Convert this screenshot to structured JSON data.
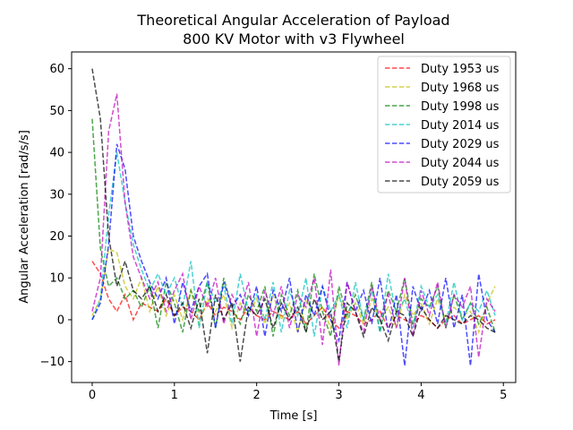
{
  "chart_data": {
    "type": "line",
    "title": "Theoretical Angular Acceleration of Payload",
    "subtitle": "800 KV Motor with v3 Flywheel",
    "xlabel": "Time [s]",
    "ylabel": "Angular Acceleration [rad/s/s]",
    "xlim": [
      -0.25,
      5.15
    ],
    "ylim": [
      -15,
      64
    ],
    "xticks": [
      0,
      1,
      2,
      3,
      4,
      5
    ],
    "yticks": [
      -10,
      0,
      10,
      20,
      30,
      40,
      50,
      60
    ],
    "grid": false,
    "legend_position": "top-right",
    "line_style": "dashed",
    "series": [
      {
        "name": "Duty 1953 us",
        "color": "#ff0000",
        "x": [
          0,
          0.1,
          0.2,
          0.3,
          0.4,
          0.5,
          0.6,
          0.7,
          0.8,
          0.9,
          1.0,
          1.1,
          1.2,
          1.3,
          1.4,
          1.5,
          1.6,
          1.7,
          1.8,
          1.9,
          2.0,
          2.1,
          2.2,
          2.3,
          2.4,
          2.5,
          2.6,
          2.7,
          2.8,
          2.9,
          3.0,
          3.1,
          3.2,
          3.3,
          3.4,
          3.5,
          3.6,
          3.7,
          3.8,
          3.9,
          4.0,
          4.1,
          4.2,
          4.3,
          4.4,
          4.5,
          4.6,
          4.7,
          4.8,
          4.9
        ],
        "y": [
          14,
          11,
          5,
          2,
          6,
          0,
          4,
          3,
          2,
          5,
          1,
          3,
          2,
          0,
          4,
          1,
          3,
          2,
          0,
          3,
          1,
          0,
          2,
          1,
          0,
          2,
          -1,
          1,
          3,
          0,
          -2,
          2,
          1,
          -1,
          0,
          2,
          -2,
          1,
          0,
          -1,
          1,
          0,
          -2,
          0,
          1,
          -1,
          0,
          1,
          -1,
          0
        ]
      },
      {
        "name": "Duty 1968 us",
        "color": "#bfbf00",
        "x": [
          0,
          0.1,
          0.2,
          0.3,
          0.4,
          0.5,
          0.6,
          0.7,
          0.8,
          0.9,
          1.0,
          1.1,
          1.2,
          1.3,
          1.4,
          1.5,
          1.6,
          1.7,
          1.8,
          1.9,
          2.0,
          2.1,
          2.2,
          2.3,
          2.4,
          2.5,
          2.6,
          2.7,
          2.8,
          2.9,
          3.0,
          3.1,
          3.2,
          3.3,
          3.4,
          3.5,
          3.6,
          3.7,
          3.8,
          3.9,
          4.0,
          4.1,
          4.2,
          4.3,
          4.4,
          4.5,
          4.6,
          4.7,
          4.8,
          4.9
        ],
        "y": [
          1,
          5,
          17,
          16,
          8,
          5,
          10,
          2,
          8,
          1,
          6,
          0,
          7,
          -1,
          5,
          2,
          6,
          -2,
          4,
          1,
          5,
          -1,
          6,
          0,
          4,
          -3,
          5,
          1,
          3,
          -2,
          6,
          0,
          4,
          -1,
          5,
          0,
          3,
          -2,
          6,
          1,
          4,
          -1,
          5,
          0,
          3,
          1,
          2,
          -3,
          4,
          8
        ]
      },
      {
        "name": "Duty 1998 us",
        "color": "#008000",
        "x": [
          0,
          0.1,
          0.2,
          0.3,
          0.4,
          0.5,
          0.6,
          0.7,
          0.8,
          0.9,
          1.0,
          1.1,
          1.2,
          1.3,
          1.4,
          1.5,
          1.6,
          1.7,
          1.8,
          1.9,
          2.0,
          2.1,
          2.2,
          2.3,
          2.4,
          2.5,
          2.6,
          2.7,
          2.8,
          2.9,
          3.0,
          3.1,
          3.2,
          3.3,
          3.4,
          3.5,
          3.6,
          3.7,
          3.8,
          3.9,
          4.0,
          4.1,
          4.2,
          4.3,
          4.4,
          4.5,
          4.6,
          4.7,
          4.8,
          4.9
        ],
        "y": [
          48,
          17,
          8,
          10,
          5,
          7,
          3,
          8,
          -2,
          9,
          4,
          -3,
          7,
          2,
          9,
          -2,
          10,
          3,
          -1,
          6,
          2,
          8,
          -4,
          6,
          1,
          7,
          -3,
          11,
          2,
          -4,
          8,
          1,
          6,
          0,
          9,
          -3,
          7,
          2,
          10,
          -1,
          5,
          3,
          8,
          -2,
          6,
          0,
          4,
          -1,
          3,
          -3
        ]
      },
      {
        "name": "Duty 2014 us",
        "color": "#00bfbf",
        "x": [
          0,
          0.1,
          0.2,
          0.3,
          0.4,
          0.5,
          0.6,
          0.7,
          0.8,
          0.9,
          1.0,
          1.1,
          1.2,
          1.3,
          1.4,
          1.5,
          1.6,
          1.7,
          1.8,
          1.9,
          2.0,
          2.1,
          2.2,
          2.3,
          2.4,
          2.5,
          2.6,
          2.7,
          2.8,
          2.9,
          3.0,
          3.1,
          3.2,
          3.3,
          3.4,
          3.5,
          3.6,
          3.7,
          3.8,
          3.9,
          4.0,
          4.1,
          4.2,
          4.3,
          4.4,
          4.5,
          4.6,
          4.7,
          4.8,
          4.9
        ],
        "y": [
          0,
          5,
          25,
          40,
          28,
          18,
          12,
          7,
          11,
          6,
          10,
          3,
          14,
          -2,
          9,
          4,
          8,
          -1,
          11,
          2,
          6,
          0,
          9,
          -3,
          7,
          1,
          10,
          -4,
          8,
          2,
          6,
          -2,
          9,
          0,
          7,
          -3,
          11,
          1,
          5,
          -2,
          8,
          3,
          6,
          -1,
          9,
          0,
          4,
          2,
          7,
          1
        ]
      },
      {
        "name": "Duty 2029 us",
        "color": "#0000ff",
        "x": [
          0,
          0.1,
          0.2,
          0.3,
          0.4,
          0.5,
          0.6,
          0.7,
          0.8,
          0.9,
          1.0,
          1.1,
          1.2,
          1.3,
          1.4,
          1.5,
          1.6,
          1.7,
          1.8,
          1.9,
          2.0,
          2.1,
          2.2,
          2.3,
          2.4,
          2.5,
          2.6,
          2.7,
          2.8,
          2.9,
          3.0,
          3.1,
          3.2,
          3.3,
          3.4,
          3.5,
          3.6,
          3.7,
          3.8,
          3.9,
          4.0,
          4.1,
          4.2,
          4.3,
          4.4,
          4.5,
          4.6,
          4.7,
          4.8,
          4.9
        ],
        "y": [
          0,
          4,
          18,
          42,
          36,
          20,
          14,
          9,
          5,
          10,
          -1,
          9,
          2,
          8,
          11,
          -2,
          9,
          3,
          6,
          1,
          8,
          -4,
          7,
          2,
          10,
          -3,
          6,
          1,
          8,
          0,
          -5,
          9,
          2,
          7,
          -1,
          10,
          -3,
          6,
          -11,
          8,
          2,
          7,
          -1,
          10,
          -2,
          6,
          -11,
          11,
          0,
          -3
        ]
      },
      {
        "name": "Duty 2044 us",
        "color": "#bf00bf",
        "x": [
          0,
          0.1,
          0.2,
          0.3,
          0.4,
          0.5,
          0.6,
          0.7,
          0.8,
          0.9,
          1.0,
          1.1,
          1.2,
          1.3,
          1.4,
          1.5,
          1.6,
          1.7,
          1.8,
          1.9,
          2.0,
          2.1,
          2.2,
          2.3,
          2.4,
          2.5,
          2.6,
          2.7,
          2.8,
          2.9,
          3.0,
          3.1,
          3.2,
          3.3,
          3.4,
          3.5,
          3.6,
          3.7,
          3.8,
          3.9,
          4.0,
          4.1,
          4.2,
          4.3,
          4.4,
          4.5,
          4.6,
          4.7,
          4.8,
          4.9
        ],
        "y": [
          2,
          10,
          45,
          54,
          28,
          15,
          10,
          5,
          9,
          2,
          7,
          11,
          0,
          8,
          3,
          10,
          -1,
          6,
          2,
          9,
          -4,
          7,
          1,
          8,
          -2,
          6,
          3,
          10,
          -6,
          12,
          -11,
          9,
          2,
          -3,
          8,
          0,
          6,
          -2,
          10,
          -4,
          7,
          1,
          9,
          -2,
          6,
          3,
          8,
          -9,
          5,
          2
        ]
      },
      {
        "name": "Duty 2059 us",
        "color": "#000000",
        "x": [
          0,
          0.1,
          0.2,
          0.3,
          0.4,
          0.5,
          0.6,
          0.7,
          0.8,
          0.9,
          1.0,
          1.1,
          1.2,
          1.3,
          1.4,
          1.5,
          1.6,
          1.7,
          1.8,
          1.9,
          2.0,
          2.1,
          2.2,
          2.3,
          2.4,
          2.5,
          2.6,
          2.7,
          2.8,
          2.9,
          3.0,
          3.1,
          3.2,
          3.3,
          3.4,
          3.5,
          3.6,
          3.7,
          3.8,
          3.9,
          4.0,
          4.1,
          4.2,
          4.3,
          4.4,
          4.5,
          4.6,
          4.7,
          4.8,
          4.9
        ],
        "y": [
          60,
          48,
          20,
          8,
          14,
          7,
          5,
          8,
          2,
          6,
          1,
          4,
          -2,
          5,
          -8,
          6,
          0,
          4,
          -10,
          3,
          1,
          5,
          -2,
          4,
          0,
          3,
          -3,
          5,
          0,
          2,
          -10,
          4,
          2,
          -4,
          3,
          0,
          -5,
          2,
          1,
          -4,
          3,
          0,
          -2,
          1,
          0,
          -1,
          1,
          0,
          -2,
          -3
        ]
      }
    ]
  }
}
